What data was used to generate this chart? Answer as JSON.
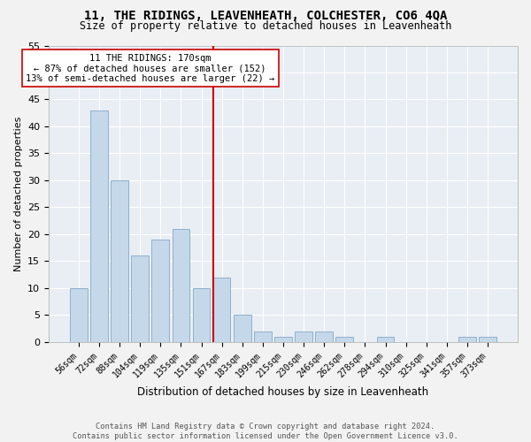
{
  "title": "11, THE RIDINGS, LEAVENHEATH, COLCHESTER, CO6 4QA",
  "subtitle": "Size of property relative to detached houses in Leavenheath",
  "xlabel": "Distribution of detached houses by size in Leavenheath",
  "ylabel": "Number of detached properties",
  "categories": [
    "56sqm",
    "72sqm",
    "88sqm",
    "104sqm",
    "119sqm",
    "135sqm",
    "151sqm",
    "167sqm",
    "183sqm",
    "199sqm",
    "215sqm",
    "230sqm",
    "246sqm",
    "262sqm",
    "278sqm",
    "294sqm",
    "310sqm",
    "325sqm",
    "341sqm",
    "357sqm",
    "373sqm"
  ],
  "values": [
    10,
    43,
    30,
    16,
    19,
    21,
    10,
    12,
    5,
    2,
    1,
    2,
    2,
    1,
    0,
    1,
    0,
    0,
    0,
    1,
    1
  ],
  "bar_color": "#c5d8ea",
  "bar_edge_color": "#8fb0cc",
  "marker_index": 7,
  "annotation_line1": "11 THE RIDINGS: 170sqm",
  "annotation_line2": "← 87% of detached houses are smaller (152)",
  "annotation_line3": "13% of semi-detached houses are larger (22) →",
  "marker_color": "#cc0000",
  "ylim": [
    0,
    55
  ],
  "yticks": [
    0,
    5,
    10,
    15,
    20,
    25,
    30,
    35,
    40,
    45,
    50,
    55
  ],
  "fig_bg": "#f2f2f2",
  "ax_bg": "#e8eef4",
  "footer_line1": "Contains HM Land Registry data © Crown copyright and database right 2024.",
  "footer_line2": "Contains public sector information licensed under the Open Government Licence v3.0."
}
